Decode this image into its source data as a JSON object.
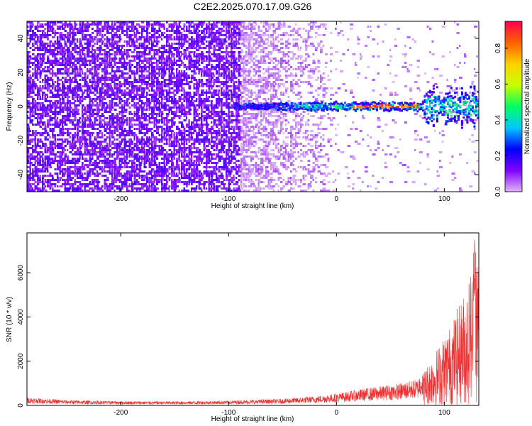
{
  "title": "C2E2.2025.070.17.09.G26",
  "colors": {
    "snr_line": "#f03030",
    "axis": "#000000"
  },
  "chart_data": [
    {
      "type": "heatmap",
      "title": "C2E2.2025.070.17.09.G26",
      "xlabel": "Height of straight line (km)",
      "ylabel": "Frequency (Hz)",
      "xlim": [
        -287,
        132
      ],
      "ylim": [
        -50,
        50
      ],
      "xticks": [
        "-200",
        "-100",
        "0",
        "100"
      ],
      "yticks": [
        "-40",
        "-20",
        "0",
        "20",
        "40"
      ],
      "grid": false,
      "colorbar": {
        "label": "Normalized spectral amplitude",
        "range": [
          0,
          0.95
        ],
        "ticks": [
          "0.0",
          "0.2",
          "0.4",
          "0.6",
          "0.8"
        ],
        "colormap": [
          "#e2b4f8",
          "#8000ff",
          "#0000ff",
          "#00c8ff",
          "#00ff60",
          "#c8ff00",
          "#ffd000",
          "#ff6000",
          "#ff0050"
        ]
      },
      "features": {
        "noise_region_x": [
          -287,
          -5
        ],
        "signal_ridge_x": [
          -95,
          132
        ],
        "signal_ridge_frequency": 0,
        "peak_amplitude_x": [
          15,
          75
        ]
      }
    },
    {
      "type": "line",
      "xlabel": "Height of straight line (km)",
      "ylabel": "SNR (10 * v/v)",
      "xlim": [
        -287,
        132
      ],
      "ylim": [
        0,
        7800
      ],
      "xticks": [
        "-200",
        "-100",
        "0",
        "100"
      ],
      "yticks": [
        "0",
        "2000",
        "4000",
        "6000"
      ],
      "grid": false,
      "envelope": {
        "x": [
          -287,
          -250,
          -200,
          -150,
          -100,
          -50,
          -20,
          0,
          20,
          40,
          60,
          75,
          85,
          95,
          105,
          115,
          120,
          125,
          130
        ],
        "y": [
          300,
          200,
          160,
          150,
          180,
          250,
          350,
          450,
          600,
          720,
          850,
          1000,
          1800,
          2600,
          3400,
          4500,
          5000,
          6000,
          6800
        ]
      },
      "max_value": 7800
    }
  ]
}
